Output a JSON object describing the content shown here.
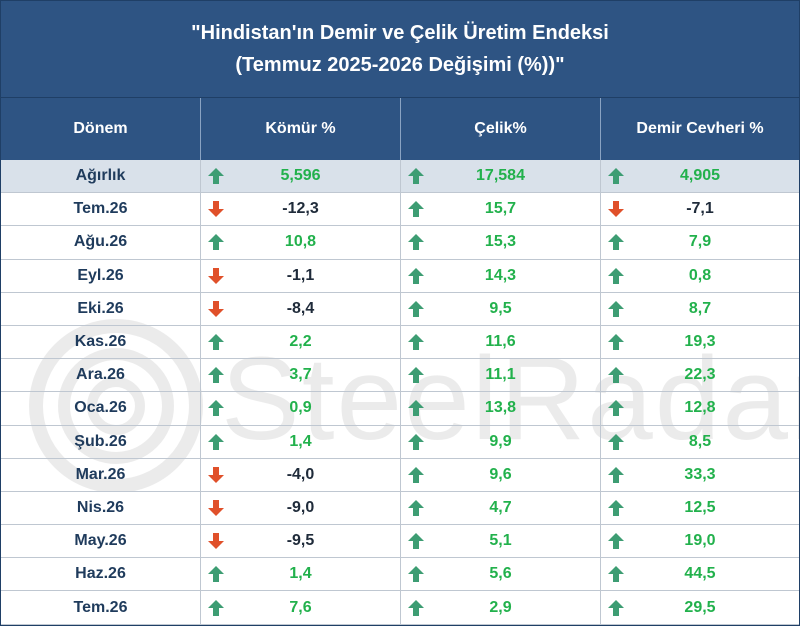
{
  "title": {
    "line1": "\"Hindistan'ın Demir ve Çelik Üretim Endeksi",
    "line2": "(Temmuz 2025-2026 Değişimi (%))\""
  },
  "headers": [
    "Dönem",
    "Kömür %",
    "Çelik%",
    "Demir Cevheri %"
  ],
  "colors": {
    "header_bg": "#2e5483",
    "up_arrow": "#3d9d73",
    "down_arrow": "#e0502a",
    "positive_text": "#22b14c"
  },
  "watermark": "SteelRadar",
  "rows": [
    {
      "period": "Ağırlık",
      "komur": "5,596",
      "celik": "17,584",
      "demir": "4,905"
    },
    {
      "period": "Tem.26",
      "komur": "-12,3",
      "celik": "15,7",
      "demir": "-7,1"
    },
    {
      "period": "Ağu.26",
      "komur": "10,8",
      "celik": "15,3",
      "demir": "7,9"
    },
    {
      "period": "Eyl.26",
      "komur": "-1,1",
      "celik": "14,3",
      "demir": "0,8"
    },
    {
      "period": "Eki.26",
      "komur": "-8,4",
      "celik": "9,5",
      "demir": "8,7"
    },
    {
      "period": "Kas.26",
      "komur": "2,2",
      "celik": "11,6",
      "demir": "19,3"
    },
    {
      "period": "Ara.26",
      "komur": "3,7",
      "celik": "11,1",
      "demir": "22,3"
    },
    {
      "period": "Oca.26",
      "komur": "0,9",
      "celik": "13,8",
      "demir": "12,8"
    },
    {
      "period": "Şub.26",
      "komur": "1,4",
      "celik": "9,9",
      "demir": "8,5"
    },
    {
      "period": "Mar.26",
      "komur": "-4,0",
      "celik": "9,6",
      "demir": "33,3"
    },
    {
      "period": "Nis.26",
      "komur": "-9,0",
      "celik": "4,7",
      "demir": "12,5"
    },
    {
      "period": "May.26",
      "komur": "-9,5",
      "celik": "5,1",
      "demir": "19,0"
    },
    {
      "period": "Haz.26",
      "komur": "1,4",
      "celik": "5,6",
      "demir": "44,5"
    },
    {
      "period": "Tem.26",
      "komur": "7,6",
      "celik": "2,9",
      "demir": "29,5"
    }
  ]
}
